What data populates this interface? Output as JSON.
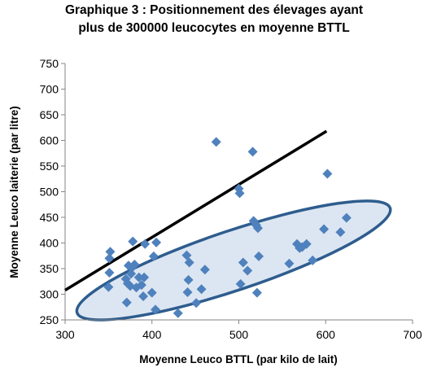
{
  "chart_data": {
    "type": "scatter",
    "title_line1": "Graphique 3 : Positionnement des élevages ayant",
    "title_line2": "plus de 300000 leucocytes en moyenne BTTL",
    "xlabel": "Moyenne Leuco BTTL (par kilo de lait)",
    "ylabel": "Moyenne Leuco laiterie  (par litre)",
    "xlim": [
      300,
      700
    ],
    "ylim": [
      250,
      750
    ],
    "xticks": [
      300,
      400,
      500,
      600,
      700
    ],
    "yticks": [
      250,
      300,
      350,
      400,
      450,
      500,
      550,
      600,
      650,
      700,
      750
    ],
    "grid": false,
    "marker_color": "#4f81bd",
    "line_color": "#000000",
    "ellipse_stroke": "#2e5d8e",
    "ellipse_fill": "#dce6f2",
    "points": [
      {
        "x": 350,
        "y": 314
      },
      {
        "x": 351,
        "y": 342
      },
      {
        "x": 351,
        "y": 370
      },
      {
        "x": 352,
        "y": 383
      },
      {
        "x": 370,
        "y": 330
      },
      {
        "x": 371,
        "y": 284
      },
      {
        "x": 372,
        "y": 321
      },
      {
        "x": 373,
        "y": 356
      },
      {
        "x": 375,
        "y": 316
      },
      {
        "x": 376,
        "y": 340
      },
      {
        "x": 377,
        "y": 352
      },
      {
        "x": 378,
        "y": 403
      },
      {
        "x": 380,
        "y": 358
      },
      {
        "x": 382,
        "y": 313
      },
      {
        "x": 385,
        "y": 333
      },
      {
        "x": 388,
        "y": 318
      },
      {
        "x": 390,
        "y": 296
      },
      {
        "x": 391,
        "y": 333
      },
      {
        "x": 392,
        "y": 398
      },
      {
        "x": 400,
        "y": 303
      },
      {
        "x": 402,
        "y": 374
      },
      {
        "x": 404,
        "y": 270
      },
      {
        "x": 405,
        "y": 401
      },
      {
        "x": 430,
        "y": 263
      },
      {
        "x": 440,
        "y": 376
      },
      {
        "x": 441,
        "y": 304
      },
      {
        "x": 442,
        "y": 328
      },
      {
        "x": 443,
        "y": 362
      },
      {
        "x": 451,
        "y": 283
      },
      {
        "x": 457,
        "y": 310
      },
      {
        "x": 461,
        "y": 348
      },
      {
        "x": 474,
        "y": 597
      },
      {
        "x": 500,
        "y": 506
      },
      {
        "x": 501,
        "y": 497
      },
      {
        "x": 502,
        "y": 320
      },
      {
        "x": 505,
        "y": 362
      },
      {
        "x": 510,
        "y": 346
      },
      {
        "x": 516,
        "y": 578
      },
      {
        "x": 517,
        "y": 443
      },
      {
        "x": 520,
        "y": 435
      },
      {
        "x": 521,
        "y": 303
      },
      {
        "x": 522,
        "y": 429
      },
      {
        "x": 523,
        "y": 374
      },
      {
        "x": 558,
        "y": 360
      },
      {
        "x": 567,
        "y": 398
      },
      {
        "x": 570,
        "y": 390
      },
      {
        "x": 573,
        "y": 392
      },
      {
        "x": 578,
        "y": 398
      },
      {
        "x": 585,
        "y": 366
      },
      {
        "x": 598,
        "y": 427
      },
      {
        "x": 602,
        "y": 535
      },
      {
        "x": 617,
        "y": 421
      },
      {
        "x": 624,
        "y": 449
      }
    ],
    "reference_line": [
      {
        "x": 300,
        "y": 308
      },
      {
        "x": 601,
        "y": 618
      }
    ],
    "ellipse": {
      "center": {
        "x": 494,
        "y": 366
      },
      "rx_data": 190,
      "ry_data": 58,
      "rotation_deg": -18.5
    }
  }
}
